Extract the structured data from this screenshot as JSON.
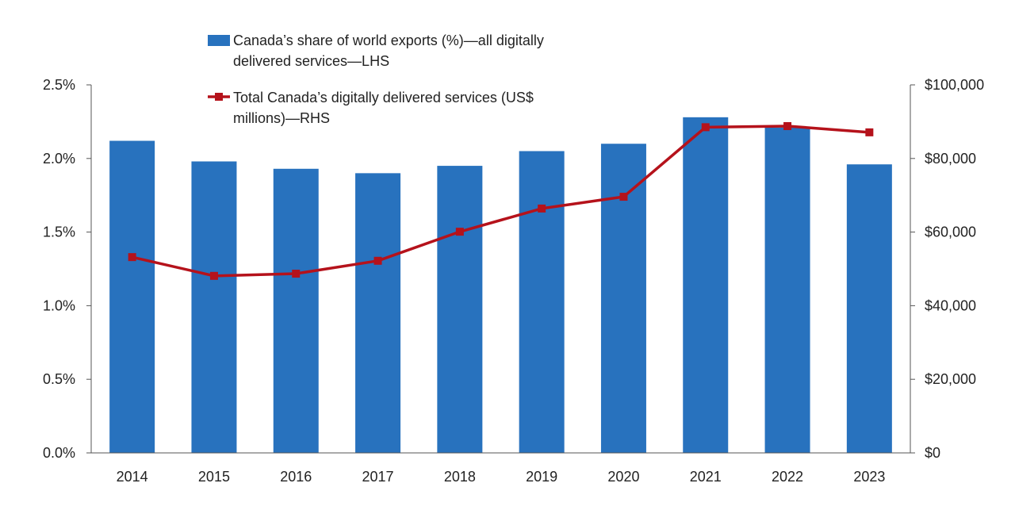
{
  "chart_data": {
    "type": "bar+line",
    "categories": [
      "2014",
      "2015",
      "2016",
      "2017",
      "2018",
      "2019",
      "2020",
      "2021",
      "2022",
      "2023"
    ],
    "series": [
      {
        "name": "Canada’s share of world exports (%)—all digitally delivered services—LHS",
        "name_lines": [
          "Canada’s share of world exports (%)—all digitally",
          "delivered services—LHS"
        ],
        "type": "bar",
        "axis": "left",
        "color": "#2872BE",
        "values": [
          2.12,
          1.98,
          1.93,
          1.9,
          1.95,
          2.05,
          2.1,
          2.28,
          2.21,
          1.96
        ]
      },
      {
        "name": "Total Canada’s digitally delivered services (US$ millions)—RHS",
        "name_lines": [
          "Total Canada’s digitally delivered services (US$",
          "millions)—RHS"
        ],
        "type": "line",
        "axis": "right",
        "color": "#B5121B",
        "values": [
          53200,
          48100,
          48700,
          52200,
          60100,
          66400,
          69600,
          88500,
          88800,
          87100
        ]
      }
    ],
    "left_axis": {
      "ylim": [
        0,
        2.5
      ],
      "ticks": [
        "0.0%",
        "0.5%",
        "1.0%",
        "1.5%",
        "2.0%",
        "2.5%"
      ]
    },
    "right_axis": {
      "ylim": [
        0,
        100000
      ],
      "ticks": [
        "$0",
        "$20,000",
        "$40,000",
        "$60,000",
        "$80,000",
        "$100,000"
      ]
    },
    "grid": false,
    "legend_placement": "top-center"
  }
}
